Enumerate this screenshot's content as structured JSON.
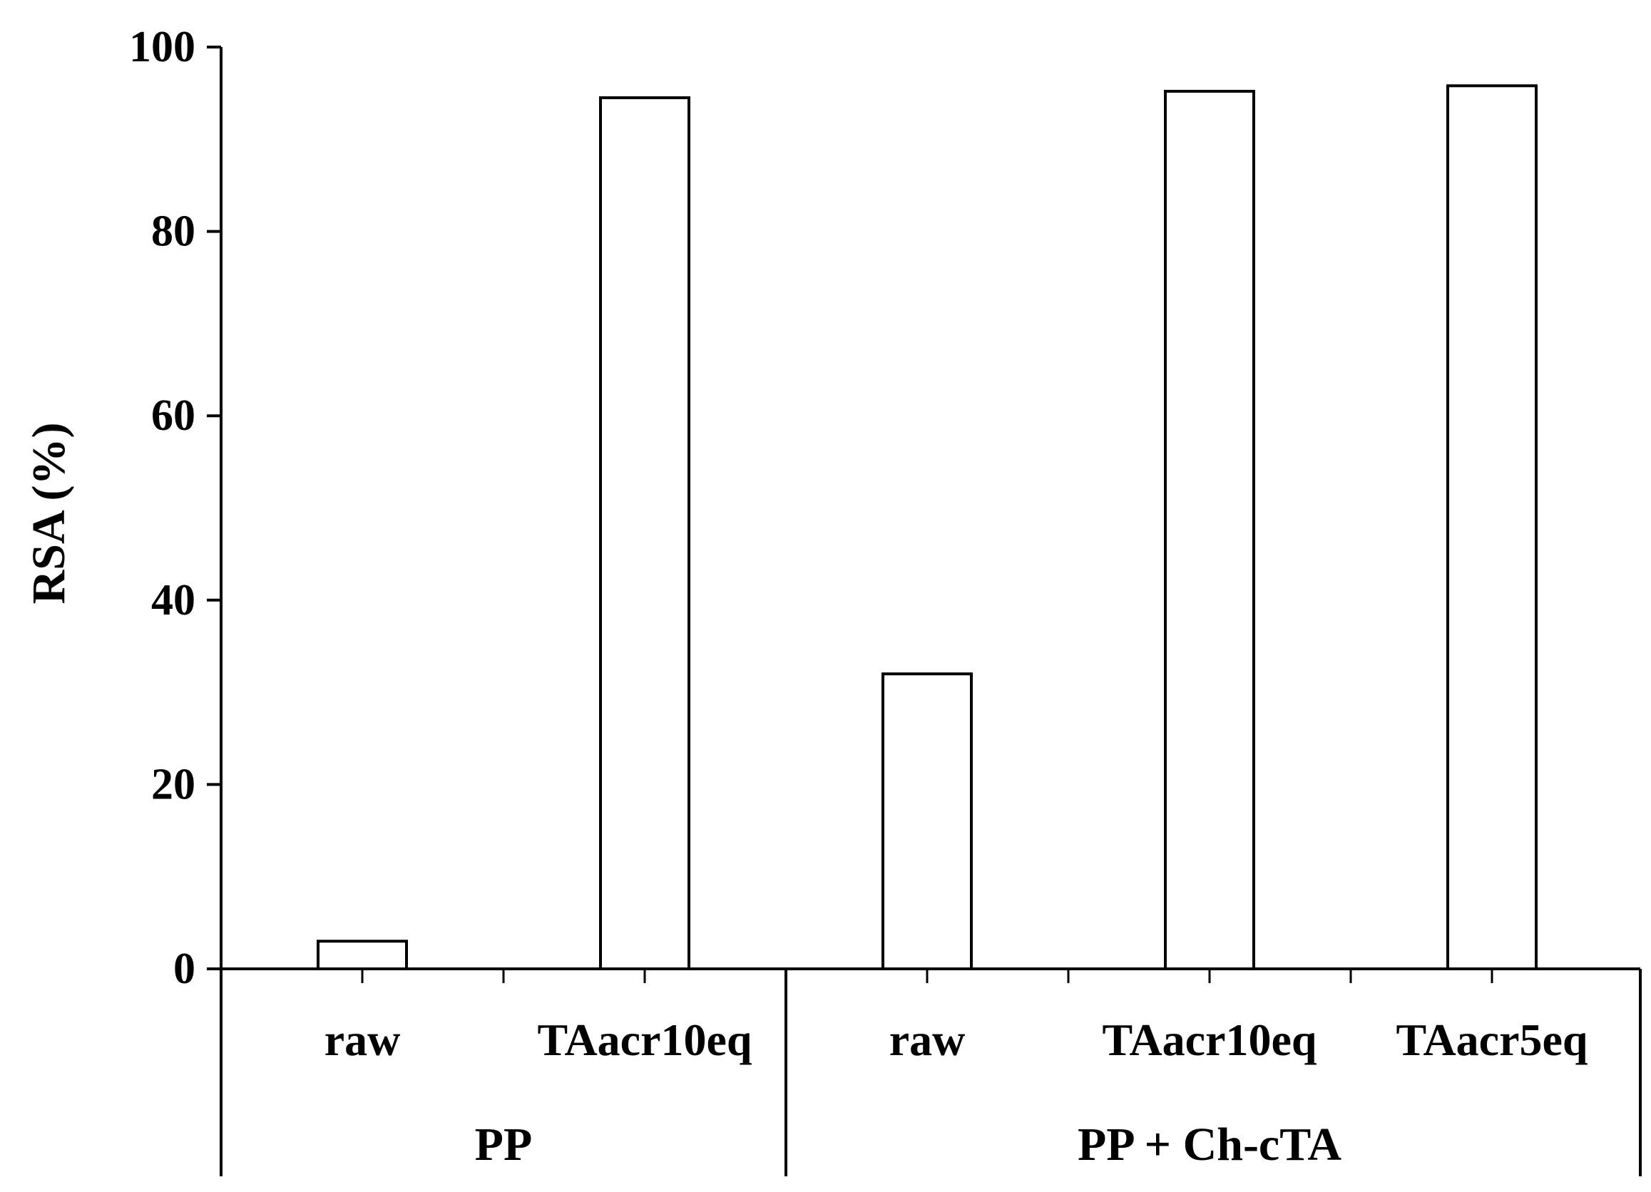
{
  "chart_data": {
    "type": "bar",
    "title": "",
    "xlabel": "",
    "ylabel": "RSA (%)",
    "ylim": [
      0,
      100
    ],
    "yticks": [
      "0",
      "20",
      "40",
      "60",
      "80",
      "100"
    ],
    "grid": false,
    "legend": "none",
    "bar_fill": "#ffffff",
    "bar_stroke": "#000000",
    "categories": [
      "raw",
      "TAacr10eq",
      "raw",
      "TAacr10eq",
      "TAacr5eq"
    ],
    "groups": [
      {
        "label": "PP",
        "span": 2
      },
      {
        "label": "PP + Ch-cTA",
        "span": 3
      }
    ],
    "values": [
      3,
      94.5,
      32,
      95.2,
      95.8
    ]
  }
}
